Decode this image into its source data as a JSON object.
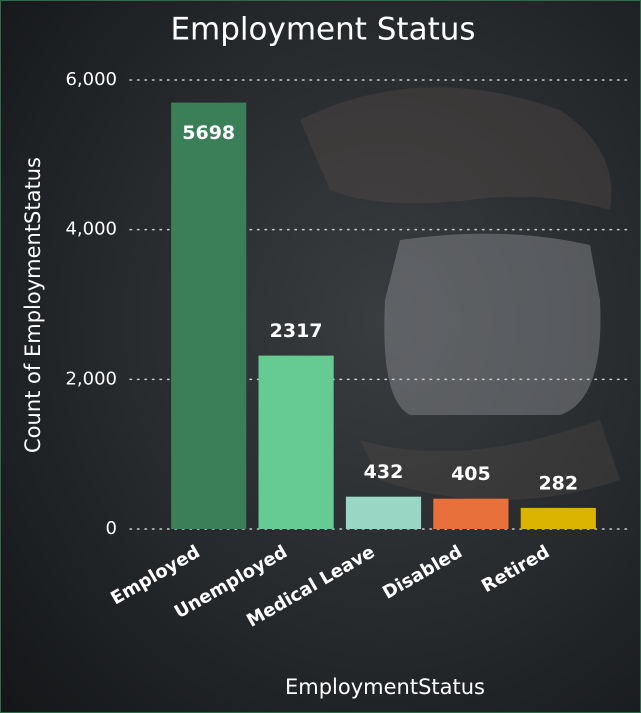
{
  "chart_data": {
    "type": "bar",
    "title": "Employment Status",
    "x_label": "EmploymentStatus",
    "y_label": "Count of EmploymentStatus",
    "categories": [
      "Employed",
      "Unemployed",
      "Medical Leave",
      "Disabled",
      "Retired"
    ],
    "values": [
      5698,
      2317,
      432,
      405,
      282
    ],
    "colors": [
      "#3a7f57",
      "#66cb93",
      "#99d6c3",
      "#e8713b",
      "#dab400"
    ],
    "ylim": [
      0,
      6000
    ],
    "yticks": [
      0,
      {
        "value": 2000,
        "label": "2,000"
      },
      {
        "value": 4000,
        "label": "4,000"
      },
      {
        "value": 6000,
        "label": "6,000"
      }
    ],
    "grid": true
  }
}
